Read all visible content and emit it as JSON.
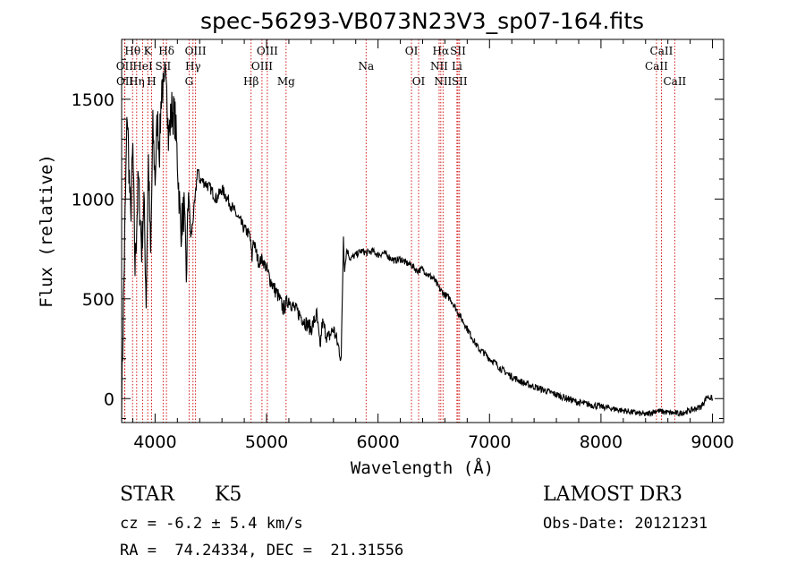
{
  "chart_data": {
    "type": "line",
    "title": "spec-56293-VB073N23V3_sp07-164.fits",
    "xlabel": "Wavelength (Å)",
    "ylabel": "Flux (relative)",
    "xlim": [
      3700,
      9100
    ],
    "ylim": [
      -120,
      1800
    ],
    "xticks": [
      4000,
      5000,
      6000,
      7000,
      8000,
      9000
    ],
    "yticks": [
      0,
      500,
      1000,
      1500
    ],
    "series": [
      {
        "name": "flux",
        "x": [
          3700,
          3720,
          3750,
          3780,
          3800,
          3820,
          3850,
          3880,
          3900,
          3920,
          3940,
          3960,
          3980,
          4000,
          4020,
          4040,
          4060,
          4080,
          4100,
          4120,
          4150,
          4180,
          4200,
          4230,
          4260,
          4280,
          4300,
          4320,
          4340,
          4360,
          4380,
          4400,
          4450,
          4500,
          4550,
          4600,
          4650,
          4700,
          4750,
          4800,
          4850,
          4870,
          4880,
          4900,
          4930,
          4960,
          5000,
          5030,
          5070,
          5100,
          5150,
          5200,
          5250,
          5300,
          5350,
          5400,
          5450,
          5480,
          5500,
          5550,
          5600,
          5650,
          5670,
          5690,
          5700,
          5720,
          5750,
          5800,
          5850,
          5900,
          5950,
          6000,
          6050,
          6100,
          6150,
          6200,
          6250,
          6300,
          6350,
          6400,
          6450,
          6500,
          6550,
          6600,
          6650,
          6700,
          6750,
          6800,
          6850,
          6900,
          6950,
          7000,
          7050,
          7100,
          7150,
          7200,
          7300,
          7400,
          7500,
          7600,
          7700,
          7800,
          7900,
          8000,
          8100,
          8200,
          8300,
          8400,
          8500,
          8600,
          8700,
          8800,
          8900,
          8950,
          9000
        ],
        "y": [
          0,
          580,
          1450,
          900,
          1250,
          650,
          1100,
          750,
          1000,
          500,
          1200,
          700,
          1350,
          1100,
          1400,
          1250,
          1600,
          1500,
          1700,
          1300,
          1450,
          1400,
          1200,
          850,
          950,
          600,
          1050,
          800,
          900,
          1000,
          1150,
          1100,
          1080,
          1050,
          1000,
          1050,
          1000,
          950,
          900,
          850,
          820,
          700,
          800,
          750,
          680,
          700,
          650,
          600,
          550,
          520,
          450,
          500,
          450,
          420,
          380,
          350,
          420,
          250,
          380,
          300,
          350,
          250,
          200,
          820,
          650,
          750,
          700,
          720,
          740,
          730,
          740,
          720,
          730,
          710,
          690,
          700,
          680,
          670,
          640,
          650,
          620,
          600,
          550,
          520,
          500,
          450,
          400,
          350,
          300,
          250,
          230,
          200,
          180,
          150,
          130,
          110,
          80,
          60,
          40,
          20,
          0,
          -20,
          -30,
          -40,
          -50,
          -60,
          -70,
          -80,
          -60,
          -70,
          -75,
          -60,
          -40,
          10,
          0
        ]
      }
    ],
    "lines_row1": [
      {
        "label": "Hθ",
        "wavelength": 3798
      },
      {
        "label": "K",
        "wavelength": 3934
      },
      {
        "label": "Hδ",
        "wavelength": 4102
      },
      {
        "label": "OIII",
        "wavelength": 4363
      },
      {
        "label": "OIII",
        "wavelength": 5007
      },
      {
        "label": "OI",
        "wavelength": 6300
      },
      {
        "label": "Hα",
        "wavelength": 6563
      },
      {
        "label": "SII",
        "wavelength": 6717
      },
      {
        "label": "CaII",
        "wavelength": 8542
      }
    ],
    "lines_row2": [
      {
        "label": "OII",
        "wavelength": 3727
      },
      {
        "label": "HeI",
        "wavelength": 3889
      },
      {
        "label": "SII",
        "wavelength": 4072
      },
      {
        "label": "Hγ",
        "wavelength": 4340
      },
      {
        "label": "OIII",
        "wavelength": 4959
      },
      {
        "label": "Na",
        "wavelength": 5893
      },
      {
        "label": "NII",
        "wavelength": 6548
      },
      {
        "label": "Li",
        "wavelength": 6708
      },
      {
        "label": "CaII",
        "wavelength": 8498
      }
    ],
    "lines_row3": [
      {
        "label": "OII",
        "wavelength": 3729
      },
      {
        "label": "Hη",
        "wavelength": 3835
      },
      {
        "label": "H",
        "wavelength": 3969
      },
      {
        "label": "G",
        "wavelength": 4305
      },
      {
        "label": "Hβ",
        "wavelength": 4861
      },
      {
        "label": "Mg",
        "wavelength": 5175
      },
      {
        "label": "OI",
        "wavelength": 6364
      },
      {
        "label": "NII",
        "wavelength": 6583
      },
      {
        "label": "SII",
        "wavelength": 6731
      },
      {
        "label": "CaII",
        "wavelength": 8662
      }
    ]
  },
  "info": {
    "class": "STAR",
    "subclass": "K5",
    "survey": "LAMOST DR3",
    "cz": "cz = -6.2 ± 5.4 km/s",
    "obs_date": "Obs-Date: 20121231",
    "radec": "RA =  74.24334, DEC =  21.31556"
  },
  "colors": {
    "spectrum": "#000000",
    "line_marker": "#cc0000",
    "axes": "#000000"
  }
}
